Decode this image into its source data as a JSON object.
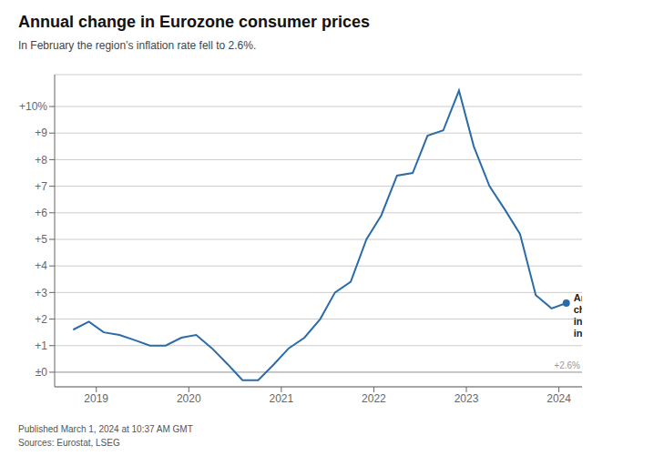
{
  "chart_data": {
    "type": "line",
    "title": "Annual change in Eurozone consumer prices",
    "subtitle": "In February the region’s inflation rate fell to 2.6%.",
    "footer": [
      "Published March 1, 2024 at 10:37 AM GMT",
      "Sources: Eurostat, LSEG"
    ],
    "annotations": [
      "Annual\nchange\nin\ninflation",
      "+2.6%"
    ],
    "color": "#2b6ca8",
    "grid": true,
    "x": [
      2018.75,
      2018.92,
      2019.08,
      2019.25,
      2019.42,
      2019.58,
      2019.75,
      2019.92,
      2020.08,
      2020.25,
      2020.42,
      2020.58,
      2020.75,
      2020.92,
      2021.08,
      2021.25,
      2021.42,
      2021.58,
      2021.75,
      2021.92,
      2022.08,
      2022.25,
      2022.42,
      2022.58,
      2022.75,
      2022.92,
      2023.08,
      2023.25,
      2023.42,
      2023.58,
      2023.75,
      2023.92,
      2024.08
    ],
    "values": [
      1.6,
      1.9,
      1.5,
      1.4,
      1.2,
      1.0,
      1.0,
      1.3,
      1.4,
      0.9,
      0.3,
      -0.3,
      -0.3,
      0.3,
      0.9,
      1.3,
      2.0,
      3.0,
      3.4,
      5.0,
      5.9,
      7.4,
      7.5,
      8.9,
      9.1,
      10.6,
      8.5,
      7.0,
      6.1,
      5.2,
      2.9,
      2.4,
      2.6
    ],
    "xlim": [
      2018.55,
      2024.25
    ],
    "xticks": [
      2019,
      2020,
      2021,
      2022,
      2023,
      2024
    ],
    "ylim": [
      -0.55,
      11.2
    ],
    "yticks": [
      {
        "value": 0,
        "label": "±0"
      },
      {
        "value": 1,
        "label": "+1"
      },
      {
        "value": 2,
        "label": "+2"
      },
      {
        "value": 3,
        "label": "+3"
      },
      {
        "value": 4,
        "label": "+4"
      },
      {
        "value": 5,
        "label": "+5"
      },
      {
        "value": 6,
        "label": "+6"
      },
      {
        "value": 7,
        "label": "+7"
      },
      {
        "value": 8,
        "label": "+8"
      },
      {
        "value": 9,
        "label": "+9"
      },
      {
        "value": 10,
        "label": "+10%"
      }
    ]
  }
}
